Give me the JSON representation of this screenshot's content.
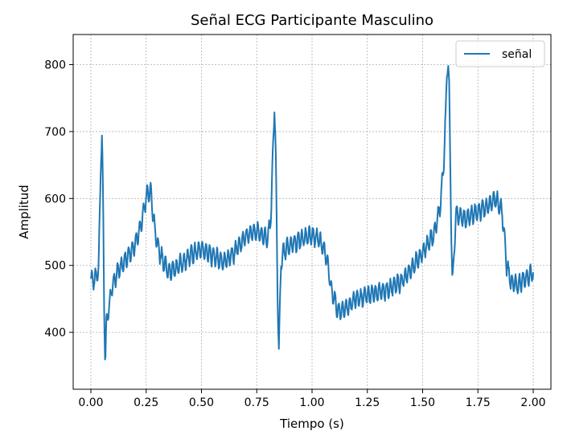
{
  "chart_data": {
    "type": "line",
    "title": "Señal ECG Participante Masculino",
    "xlabel": "Tiempo (s)",
    "ylabel": "Amplitud",
    "xlim": [
      -0.08,
      2.08
    ],
    "ylim": [
      315,
      845
    ],
    "xticks": [
      0.0,
      0.25,
      0.5,
      0.75,
      1.0,
      1.25,
      1.5,
      1.75,
      2.0
    ],
    "xtick_labels": [
      "0.00",
      "0.25",
      "0.50",
      "0.75",
      "1.00",
      "1.25",
      "1.50",
      "1.75",
      "2.00"
    ],
    "yticks": [
      400,
      500,
      600,
      700,
      800
    ],
    "ytick_labels": [
      "400",
      "500",
      "600",
      "700",
      "800"
    ],
    "grid": true,
    "legend_position": "top-right",
    "series": [
      {
        "name": "señal",
        "color": "#1f77b4",
        "noise_amplitude": 15,
        "x": [
          0.0,
          0.02,
          0.035,
          0.04,
          0.045,
          0.05,
          0.055,
          0.06,
          0.065,
          0.07,
          0.08,
          0.1,
          0.13,
          0.16,
          0.2,
          0.23,
          0.25,
          0.27,
          0.29,
          0.31,
          0.35,
          0.4,
          0.45,
          0.5,
          0.55,
          0.6,
          0.65,
          0.7,
          0.75,
          0.8,
          0.815,
          0.825,
          0.83,
          0.835,
          0.84,
          0.845,
          0.85,
          0.855,
          0.86,
          0.87,
          0.9,
          0.95,
          1.0,
          1.03,
          1.06,
          1.09,
          1.12,
          1.15,
          1.2,
          1.25,
          1.3,
          1.35,
          1.4,
          1.45,
          1.5,
          1.55,
          1.58,
          1.595,
          1.605,
          1.61,
          1.615,
          1.62,
          1.625,
          1.63,
          1.635,
          1.64,
          1.65,
          1.7,
          1.75,
          1.8,
          1.83,
          1.86,
          1.88,
          1.9,
          1.93,
          1.96,
          2.0
        ],
        "y": [
          478,
          480,
          495,
          570,
          660,
          695,
          600,
          440,
          355,
          410,
          435,
          475,
          495,
          510,
          530,
          565,
          605,
          610,
          550,
          520,
          490,
          500,
          515,
          525,
          515,
          505,
          520,
          545,
          550,
          540,
          580,
          690,
          740,
          680,
          560,
          440,
          375,
          440,
          505,
          520,
          530,
          540,
          545,
          540,
          520,
          460,
          430,
          435,
          450,
          455,
          460,
          465,
          475,
          495,
          520,
          545,
          590,
          650,
          730,
          790,
          810,
          760,
          650,
          545,
          470,
          500,
          575,
          570,
          580,
          590,
          600,
          580,
          500,
          475,
          470,
          480,
          490
        ]
      }
    ]
  }
}
